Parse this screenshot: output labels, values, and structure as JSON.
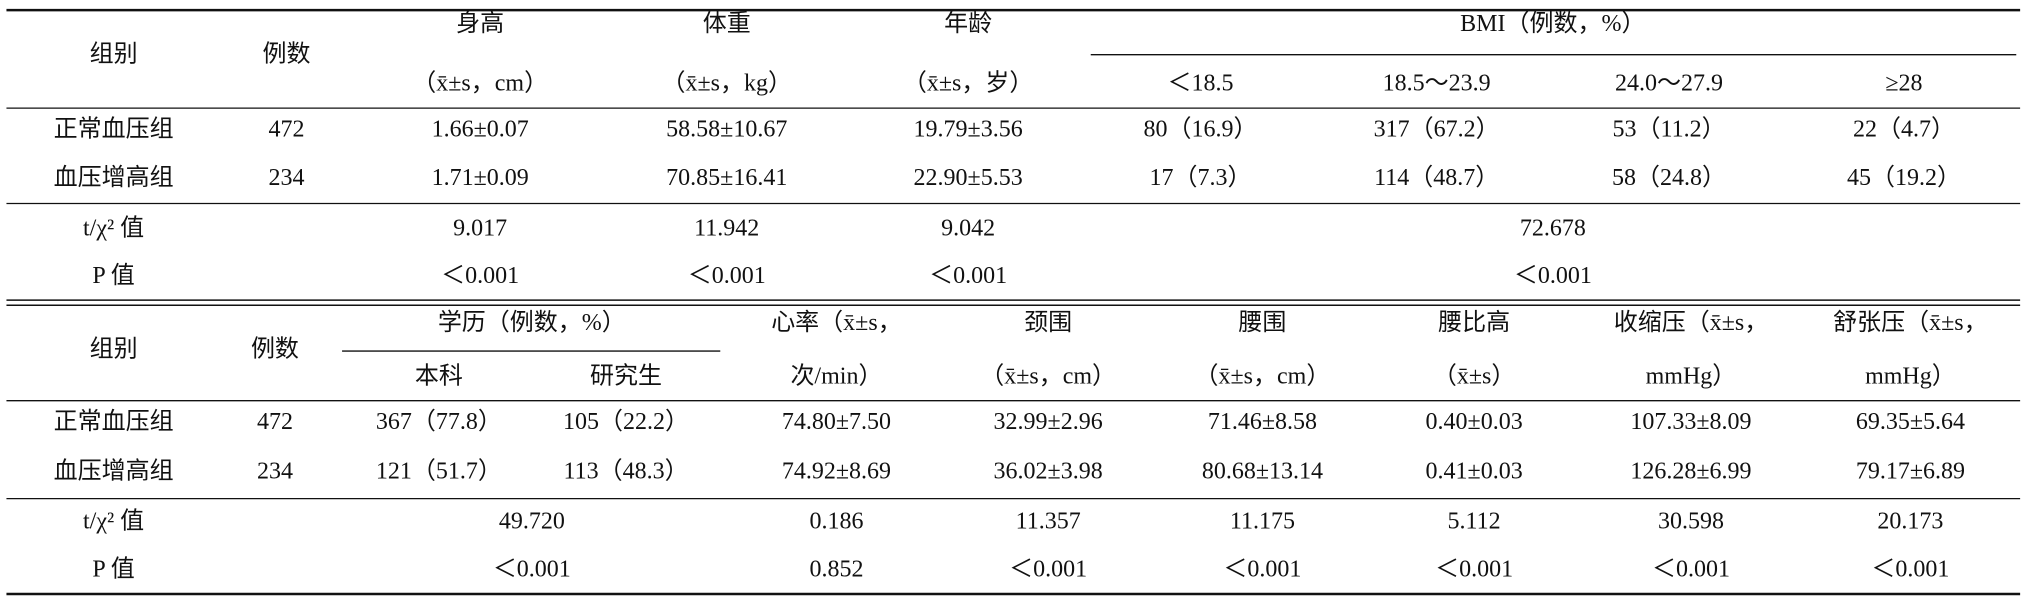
{
  "table1": {
    "header_top": [
      "组别",
      "例数",
      "身高",
      "体重",
      "年龄",
      "BMI（例数，%）"
    ],
    "header_sub": [
      "（x̄±s，cm）",
      "（x̄±s，kg）",
      "（x̄±s，岁）",
      "＜18.5",
      "18.5～23.9",
      "24.0～27.9",
      "≥28"
    ],
    "rows": [
      [
        "正常血压组",
        "472",
        "1.66±0.07",
        "58.58±10.67",
        "19.79±3.56",
        "80（16.9）",
        "317（67.2）",
        "53（11.2）",
        "22（4.7）"
      ],
      [
        "血压增高组",
        "234",
        "1.71±0.09",
        "70.85±16.41",
        "22.90±5.53",
        "17（7.3）",
        "114（48.7）",
        "58（24.8）",
        "45（19.2）"
      ]
    ],
    "test_rows": [
      [
        "t/χ² 值",
        "9.017",
        "11.942",
        "9.042",
        "72.678"
      ],
      [
        "P 值",
        "＜0.001",
        "＜0.001",
        "＜0.001",
        "＜0.001"
      ]
    ]
  },
  "table2": {
    "header_top": [
      "组别",
      "例数",
      "学历（例数，%）",
      "心率（x̄±s，",
      "颈围",
      "腰围",
      "腰比高",
      "收缩压（x̄±s，",
      "舒张压（x̄±s，"
    ],
    "header_sub": [
      "本科",
      "研究生",
      "次/min）",
      "（x̄±s，cm）",
      "（x̄±s，cm）",
      "（x̄±s）",
      "mmHg）",
      "mmHg）"
    ],
    "rows": [
      [
        "正常血压组",
        "472",
        "367（77.8）",
        "105（22.2）",
        "74.80±7.50",
        "32.99±2.96",
        "71.46±8.58",
        "0.40±0.03",
        "107.33±8.09",
        "69.35±5.64"
      ],
      [
        "血压增高组",
        "234",
        "121（51.7）",
        "113（48.3）",
        "74.92±8.69",
        "36.02±3.98",
        "80.68±13.14",
        "0.41±0.03",
        "126.28±6.99",
        "79.17±6.89"
      ]
    ],
    "test_rows": [
      [
        "t/χ² 值",
        "49.720",
        "0.186",
        "11.357",
        "11.175",
        "5.112",
        "30.598",
        "20.173"
      ],
      [
        "P 值",
        "＜0.001",
        "0.852",
        "＜0.001",
        "＜0.001",
        "＜0.001",
        "＜0.001",
        "＜0.001"
      ]
    ]
  }
}
